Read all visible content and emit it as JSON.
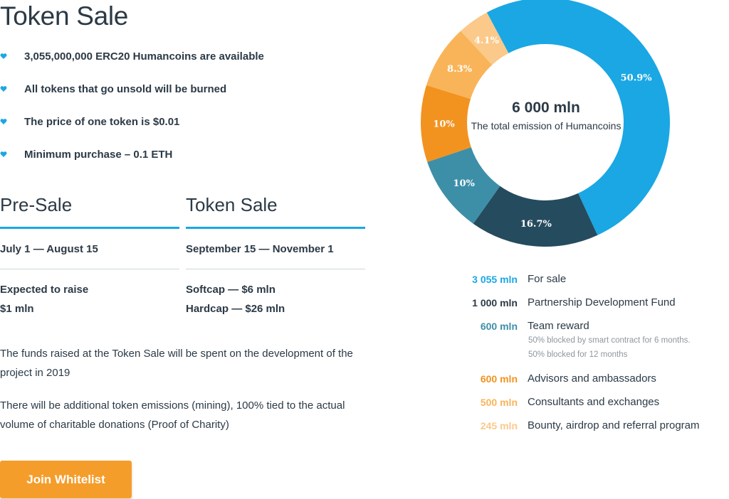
{
  "page": {
    "title": "Token Sale",
    "bullets": [
      "3,055,000,000 ERC20 Humancoins are available",
      "All tokens that go unsold will be burned",
      "The price of one token is $0.01",
      "Minimum purchase – 0.1 ETH"
    ],
    "bullet_color": "#1aa7e4"
  },
  "presale": {
    "title": "Pre-Sale",
    "dates": "July 1 — August 15",
    "lines": [
      "Expected to raise",
      "$1 mln"
    ]
  },
  "tokensale": {
    "title": "Token Sale",
    "dates": "September 15 — November 1",
    "lines": [
      "Softcap — $6 mln",
      "Hardcap — $26 mln"
    ]
  },
  "paragraphs": [
    "The funds raised at the Token Sale will be spent on the development of the project in 2019",
    "There will be additional token emissions (mining), 100% tied to the actual volume of charitable donations (Proof of Charity)"
  ],
  "join_button": {
    "label": "Join Whitelist",
    "color": "#f59d2b"
  },
  "chart_data": {
    "type": "pie",
    "donut": true,
    "center_value": "6 000 mln",
    "center_label": "The total emission of Humancoins",
    "slices": [
      {
        "amount": "3 055 mln",
        "label": "For sale",
        "percent_label": "50.9%",
        "value": 50.9,
        "color": "#1aa7e4"
      },
      {
        "amount": "1 000 mln",
        "label": "Partnership Development Fund",
        "percent_label": "16.7%",
        "value": 16.7,
        "color": "#254b5e"
      },
      {
        "amount": "600 mln",
        "label": "Team reward",
        "percent_label": "10%",
        "value": 10,
        "color": "#3d8fa8",
        "notes": [
          "50% blocked by smart contract for 6 months.",
          "50% blocked for 12 months"
        ]
      },
      {
        "amount": "600 mln",
        "label": "Advisors and ambassadors",
        "percent_label": "10%",
        "value": 10,
        "color": "#f2931f"
      },
      {
        "amount": "500 mln",
        "label": "Consultants and exchanges",
        "percent_label": "8.3%",
        "value": 8.3,
        "color": "#f9b459"
      },
      {
        "amount": "245 mln",
        "label": "Bounty, airdrop and referral program",
        "percent_label": "4.1%",
        "value": 4.1,
        "color": "#fbc98a"
      }
    ]
  }
}
